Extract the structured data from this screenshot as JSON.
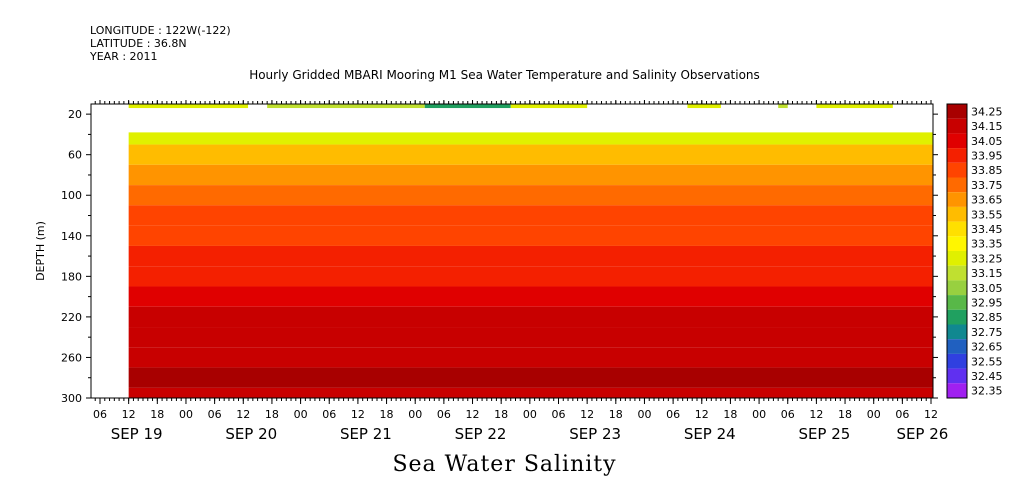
{
  "header": {
    "longitude": "LONGITUDE : 122W(-122)",
    "latitude": "LATITUDE : 36.8N",
    "year": "YEAR : 2011"
  },
  "chart_data": {
    "type": "heatmap",
    "title": "Hourly Gridded MBARI Mooring M1 Sea Water Temperature and Salinity Observations",
    "xlabel": "Sea Water Salinity",
    "ylabel": "DEPTH (m)",
    "ylim": [
      300,
      10
    ],
    "y_ticks": [
      20,
      60,
      100,
      140,
      180,
      220,
      260,
      300
    ],
    "x_hour_ticks": [
      "06",
      "12",
      "18",
      "00",
      "06",
      "12",
      "18",
      "00",
      "06",
      "12",
      "18",
      "00",
      "06",
      "12",
      "18",
      "00",
      "06",
      "12",
      "18",
      "00",
      "06",
      "12",
      "18",
      "00",
      "06",
      "12",
      "18",
      "00",
      "06",
      "12",
      "18",
      "00"
    ],
    "x_date_labels": [
      "SEP 19",
      "SEP 20",
      "SEP 21",
      "SEP 22",
      "SEP 23",
      "SEP 24",
      "SEP 25",
      "SEP 26"
    ],
    "colorbar_levels": [
      "34.25",
      "34.15",
      "34.05",
      "33.95",
      "33.85",
      "33.75",
      "33.65",
      "33.55",
      "33.45",
      "33.35",
      "33.25",
      "33.15",
      "33.05",
      "32.95",
      "32.85",
      "32.75",
      "32.65",
      "32.55",
      "32.45",
      "32.35"
    ],
    "colorbar_colors": [
      "#a80000",
      "#c80000",
      "#e00000",
      "#f42000",
      "#ff4400",
      "#ff6a00",
      "#ff9400",
      "#ffbc00",
      "#ffe000",
      "#fff600",
      "#e0f000",
      "#c0e030",
      "#98d040",
      "#58b848",
      "#20a060",
      "#108890",
      "#2060c0",
      "#3040e0",
      "#6030f0",
      "#a020f0",
      "#e020f0"
    ],
    "depth_levels": [
      40,
      60,
      80,
      100,
      120,
      140,
      160,
      180,
      200,
      220,
      240,
      260,
      280,
      300
    ],
    "depth_profile": [
      33.3,
      33.55,
      33.7,
      33.78,
      33.87,
      33.93,
      33.98,
      34.04,
      34.1,
      34.15,
      34.2,
      34.24,
      34.25,
      34.22
    ],
    "surface_segments": [
      {
        "start": "SEP 19 12",
        "end": "SEP 20 13",
        "value": 33.3
      },
      {
        "start": "SEP 20 17",
        "end": "SEP 22 02",
        "value": 33.2
      },
      {
        "start": "SEP 22 02",
        "end": "SEP 22 20",
        "value": 32.9
      },
      {
        "start": "SEP 22 20",
        "end": "SEP 23 12",
        "value": 33.3
      },
      {
        "start": "SEP 24 09",
        "end": "SEP 24 16",
        "value": 33.3
      },
      {
        "start": "SEP 25 04",
        "end": "SEP 25 06",
        "value": 33.2
      },
      {
        "start": "SEP 25 12",
        "end": "SEP 26 04",
        "value": 33.3
      }
    ],
    "grid": false,
    "legend": "right colorbar"
  }
}
